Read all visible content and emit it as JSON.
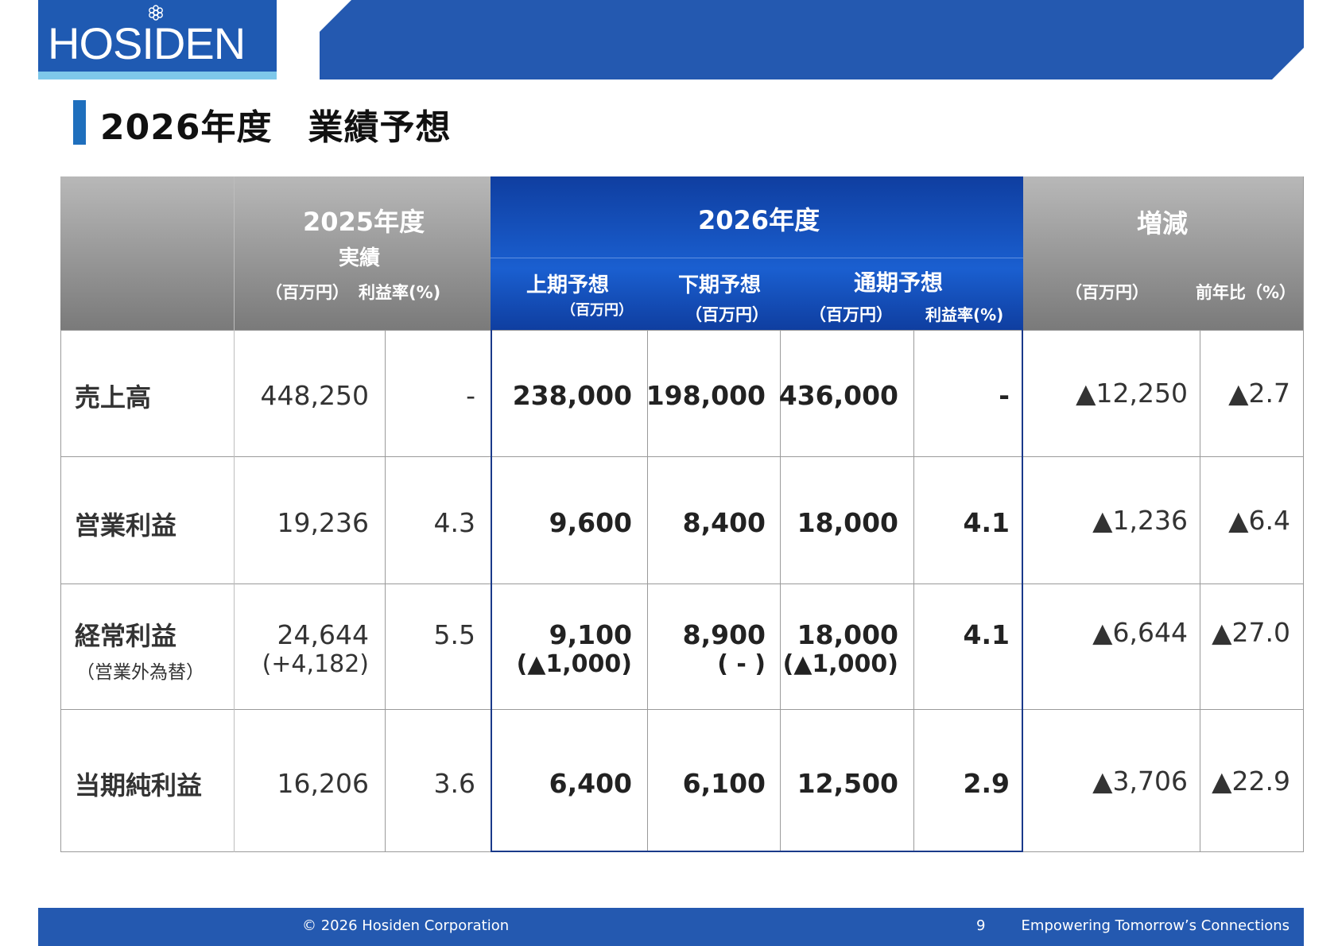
{
  "header": {
    "logo_text": "HOSIDEN"
  },
  "title": "2026年度　業績予想",
  "table": {
    "h2025": {
      "year": "2025年度",
      "sub": "実績",
      "unit1": "（百万円）",
      "unit2": "利益率(%)"
    },
    "h2026": {
      "year": "2026年度",
      "first_half": "上期予想",
      "first_half_unit": "（百万円）",
      "second_half": "下期予想",
      "second_half_unit": "（百万円）",
      "full_year": "通期予想",
      "full_year_unit": "（百万円）",
      "margin_unit": "利益率(%)"
    },
    "hdiff": {
      "title": "増減",
      "unit1": "（百万円）",
      "unit2": "前年比（%）"
    },
    "rows": [
      {
        "label": "売上高",
        "sub": "",
        "a2025": "448,250",
        "a2025_sub": "",
        "m2025": "-",
        "h1": "238,000",
        "h1_sub": "",
        "h2": "198,000",
        "h2_sub": "",
        "fy": "436,000",
        "fy_sub": "",
        "m2026": "-",
        "diff": "▲12,250",
        "pct": "▲2.7"
      },
      {
        "label": "営業利益",
        "sub": "",
        "a2025": "19,236",
        "a2025_sub": "",
        "m2025": "4.3",
        "h1": "9,600",
        "h1_sub": "",
        "h2": "8,400",
        "h2_sub": "",
        "fy": "18,000",
        "fy_sub": "",
        "m2026": "4.1",
        "diff": "▲1,236",
        "pct": "▲6.4"
      },
      {
        "label": "経常利益",
        "sub": "（営業外為替）",
        "a2025": "24,644",
        "a2025_sub": "(+4,182)",
        "m2025": "5.5",
        "h1": "9,100",
        "h1_sub": "(▲1,000)",
        "h2": "8,900",
        "h2_sub": "( - )",
        "fy": "18,000",
        "fy_sub": "(▲1,000)",
        "m2026": "4.1",
        "diff": "▲6,644",
        "pct": "▲27.0"
      },
      {
        "label": "当期純利益",
        "sub": "",
        "a2025": "16,206",
        "a2025_sub": "",
        "m2025": "3.6",
        "h1": "6,400",
        "h1_sub": "",
        "h2": "6,100",
        "h2_sub": "",
        "fy": "12,500",
        "fy_sub": "",
        "m2026": "2.9",
        "diff": "▲3,706",
        "pct": "▲22.9"
      }
    ]
  },
  "footer": {
    "copyright": "© 2026 Hosiden Corporation",
    "page": "9",
    "tagline": "Empowering Tomorrow’s Connections"
  },
  "colors": {
    "brand_blue": "#2459b0",
    "header_gray": "#8a8a8a",
    "accent_blue": "#1f6fbd"
  }
}
